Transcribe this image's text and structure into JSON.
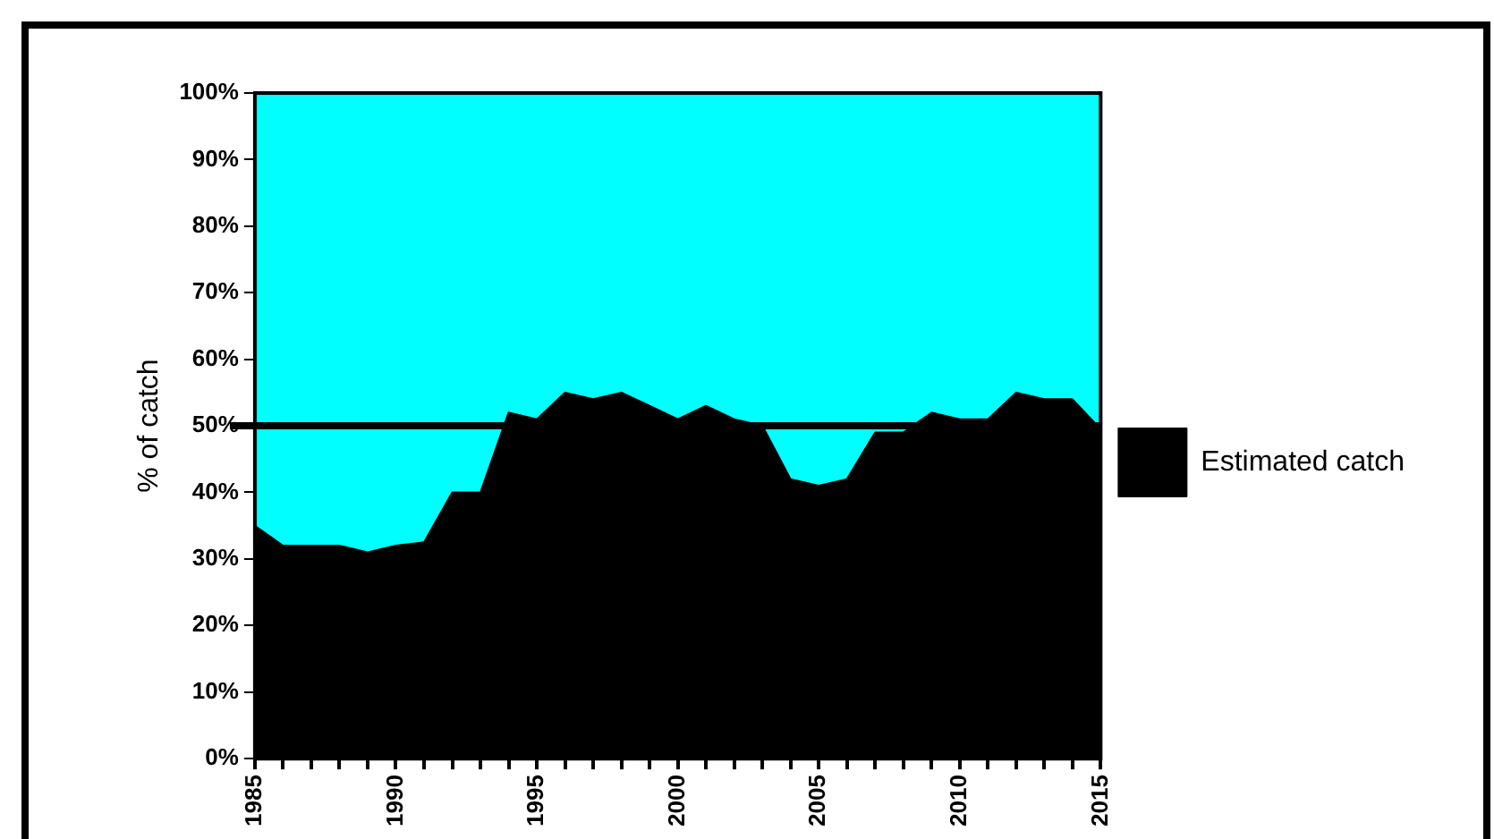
{
  "chart_data": {
    "type": "area",
    "stacked": true,
    "ylabel": "% of catch",
    "x": [
      1985,
      1986,
      1987,
      1988,
      1989,
      1990,
      1991,
      1992,
      1993,
      1994,
      1995,
      1996,
      1997,
      1998,
      1999,
      2000,
      2001,
      2002,
      2003,
      2004,
      2005,
      2006,
      2007,
      2008,
      2009,
      2010,
      2011,
      2012,
      2013,
      2014,
      2015
    ],
    "series": [
      {
        "name": "Estimated catch",
        "color": "#000000",
        "values": [
          35,
          32,
          32,
          32,
          31,
          32,
          32.5,
          40,
          40,
          52,
          51,
          55,
          54,
          55,
          53,
          51,
          53,
          51,
          50,
          42,
          41,
          42,
          49,
          49,
          52,
          51,
          51,
          55,
          54,
          54,
          49.5
        ]
      },
      {
        "color": "#00ffff",
        "values": [
          65,
          68,
          68,
          68,
          69,
          68,
          67.5,
          60,
          60,
          48,
          49,
          45,
          46,
          45,
          47,
          49,
          47,
          49,
          50,
          58,
          59,
          58,
          51,
          51,
          48,
          49,
          49,
          45,
          46,
          46,
          50.5
        ]
      }
    ],
    "xlim": [
      1985,
      2015
    ],
    "xticks": [
      1985,
      {
        "value": 1986,
        "label": null
      },
      {
        "value": 1987,
        "label": null
      },
      {
        "value": 1988,
        "label": null
      },
      {
        "value": 1989,
        "label": null
      },
      1990,
      {
        "value": 1991,
        "label": null
      },
      {
        "value": 1992,
        "label": null
      },
      {
        "value": 1993,
        "label": null
      },
      {
        "value": 1994,
        "label": null
      },
      1995,
      {
        "value": 1996,
        "label": null
      },
      {
        "value": 1997,
        "label": null
      },
      {
        "value": 1998,
        "label": null
      },
      {
        "value": 1999,
        "label": null
      },
      2000,
      {
        "value": 2001,
        "label": null
      },
      {
        "value": 2002,
        "label": null
      },
      {
        "value": 2003,
        "label": null
      },
      {
        "value": 2004,
        "label": null
      },
      2005,
      {
        "value": 2006,
        "label": null
      },
      {
        "value": 2007,
        "label": null
      },
      {
        "value": 2008,
        "label": null
      },
      {
        "value": 2009,
        "label": null
      },
      2010,
      {
        "value": 2011,
        "label": null
      },
      {
        "value": 2012,
        "label": null
      },
      {
        "value": 2013,
        "label": null
      },
      {
        "value": 2014,
        "label": null
      },
      2015
    ],
    "ylim": [
      0,
      100
    ],
    "yticks": [
      {
        "value": 0,
        "label": "0%"
      },
      {
        "value": 10,
        "label": "10%"
      },
      {
        "value": 20,
        "label": "20%"
      },
      {
        "value": 30,
        "label": "30%"
      },
      {
        "value": 40,
        "label": "40%"
      },
      {
        "value": 50,
        "label": "50%"
      },
      {
        "value": 60,
        "label": "60%"
      },
      {
        "value": 70,
        "label": "70%"
      },
      {
        "value": 80,
        "label": "80%"
      },
      {
        "value": 90,
        "label": "90%"
      },
      {
        "value": 100,
        "label": "100%"
      }
    ],
    "ref_lines": [
      {
        "axis": "y",
        "value": 50,
        "color": "#000000"
      }
    ],
    "legend": "right"
  }
}
